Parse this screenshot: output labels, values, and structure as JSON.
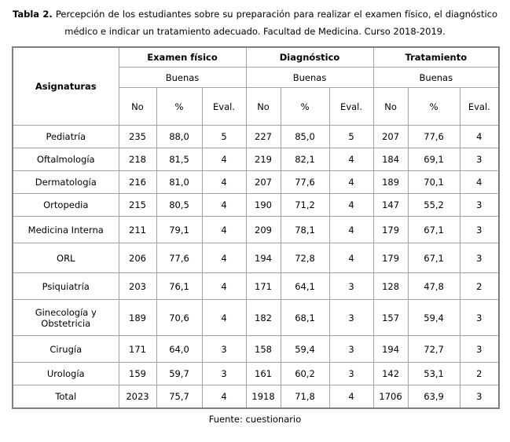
{
  "caption": {
    "label": "Tabla 2.",
    "text": "Percepción de los estudiantes sobre su preparación para realizar el examen físico, el diagnóstico médico e indicar un tratamiento adecuado. Facultad de Medicina. Curso 2018-2019."
  },
  "table": {
    "col1_header": "Asignaturas",
    "groups": [
      {
        "label": "Examen físico"
      },
      {
        "label": "Diagnóstico"
      },
      {
        "label": "Tratamiento"
      }
    ],
    "subheader": "Buenas",
    "metric_headers": [
      "No",
      "%",
      "Eval."
    ],
    "rows": [
      {
        "name": "Pediatría",
        "values": [
          "235",
          "88,0",
          "5",
          "227",
          "85,0",
          "5",
          "207",
          "77,6",
          "4"
        ]
      },
      {
        "name": "Oftalmología",
        "values": [
          "218",
          "81,5",
          "4",
          "219",
          "82,1",
          "4",
          "184",
          "69,1",
          "3"
        ]
      },
      {
        "name": "Dermatología",
        "values": [
          "216",
          "81,0",
          "4",
          "207",
          "77,6",
          "4",
          "189",
          "70,1",
          "4"
        ]
      },
      {
        "name": "Ortopedia",
        "values": [
          "215",
          "80,5",
          "4",
          "190",
          "71,2",
          "4",
          "147",
          "55,2",
          "3"
        ]
      },
      {
        "name": "Medicina Interna",
        "values": [
          "211",
          "79,1",
          "4",
          "209",
          "78,1",
          "4",
          "179",
          "67,1",
          "3"
        ]
      },
      {
        "name": "ORL",
        "values": [
          "206",
          "77,6",
          "4",
          "194",
          "72,8",
          "4",
          "179",
          "67,1",
          "3"
        ]
      },
      {
        "name": "Psiquiatría",
        "values": [
          "203",
          "76,1",
          "4",
          "171",
          "64,1",
          "3",
          "128",
          "47,8",
          "2"
        ]
      },
      {
        "name": "Ginecología y Obstetricia",
        "values": [
          "189",
          "70,6",
          "4",
          "182",
          "68,1",
          "3",
          "157",
          "59,4",
          "3"
        ]
      },
      {
        "name": "Cirugía",
        "values": [
          "171",
          "64,0",
          "3",
          "158",
          "59,4",
          "3",
          "194",
          "72,7",
          "3"
        ]
      },
      {
        "name": "Urología",
        "values": [
          "159",
          "59,7",
          "3",
          "161",
          "60,2",
          "3",
          "142",
          "53,1",
          "2"
        ]
      },
      {
        "name": "Total",
        "values": [
          "2023",
          "75,7",
          "4",
          "1918",
          "71,8",
          "4",
          "1706",
          "63,9",
          "3"
        ]
      }
    ]
  },
  "footer": {
    "text": "Fuente: cuestionario"
  }
}
